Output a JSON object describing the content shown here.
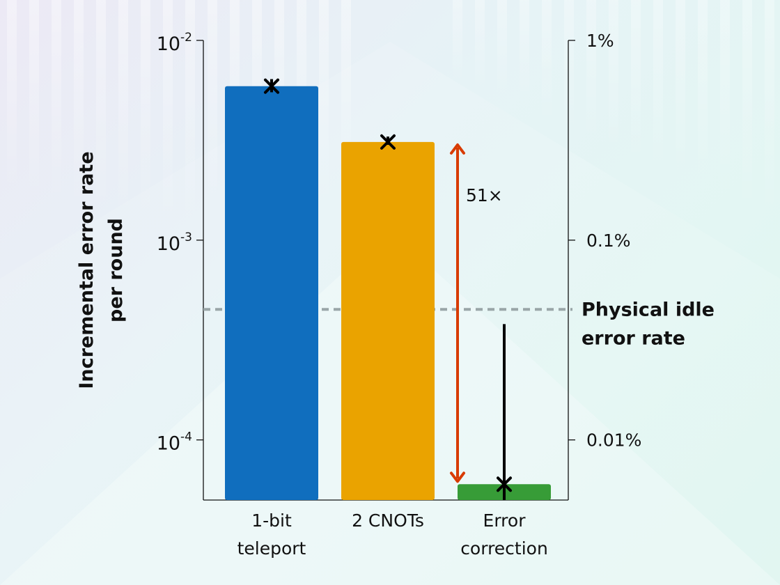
{
  "chart_data": {
    "type": "bar",
    "categories": [
      "1-bit teleport",
      "2 CNOTs",
      "Error correction"
    ],
    "category_lines": [
      [
        "1-bit",
        "teleport"
      ],
      [
        "2 CNOTs"
      ],
      [
        "Error",
        "correction"
      ]
    ],
    "values": [
      0.0059,
      0.0031,
      6e-05
    ],
    "error_bars": [
      {
        "low": 0.0055,
        "high": 0.0064
      },
      {
        "low": 0.003,
        "high": 0.0033
      },
      {
        "low": 5e-05,
        "high": 0.00038
      }
    ],
    "colors": [
      "#106ebe",
      "#eaa300",
      "#379c37"
    ],
    "ylabel_lines": [
      "Incremental error rate",
      "per round"
    ],
    "yscale": "log",
    "ylim": [
      5e-05,
      0.01
    ],
    "left_ticks": [
      {
        "value": 0.01,
        "base": "10",
        "exp": "-2"
      },
      {
        "value": 0.001,
        "base": "10",
        "exp": "-3"
      },
      {
        "value": 0.0001,
        "base": "10",
        "exp": "-4"
      }
    ],
    "right_ticks": [
      {
        "value": 0.01,
        "label": "1%"
      },
      {
        "value": 0.001,
        "label": "0.1%"
      },
      {
        "value": 0.0001,
        "label": "0.01%"
      }
    ],
    "reference_line": {
      "value": 0.00045,
      "label_lines": [
        "Physical idle",
        "error rate"
      ],
      "color": "#9aa6a8"
    },
    "ratio_annotation": {
      "label": "51×",
      "from": 6e-05,
      "to": 0.0031,
      "color": "#d83b01"
    },
    "grid": false,
    "legend": "none"
  }
}
